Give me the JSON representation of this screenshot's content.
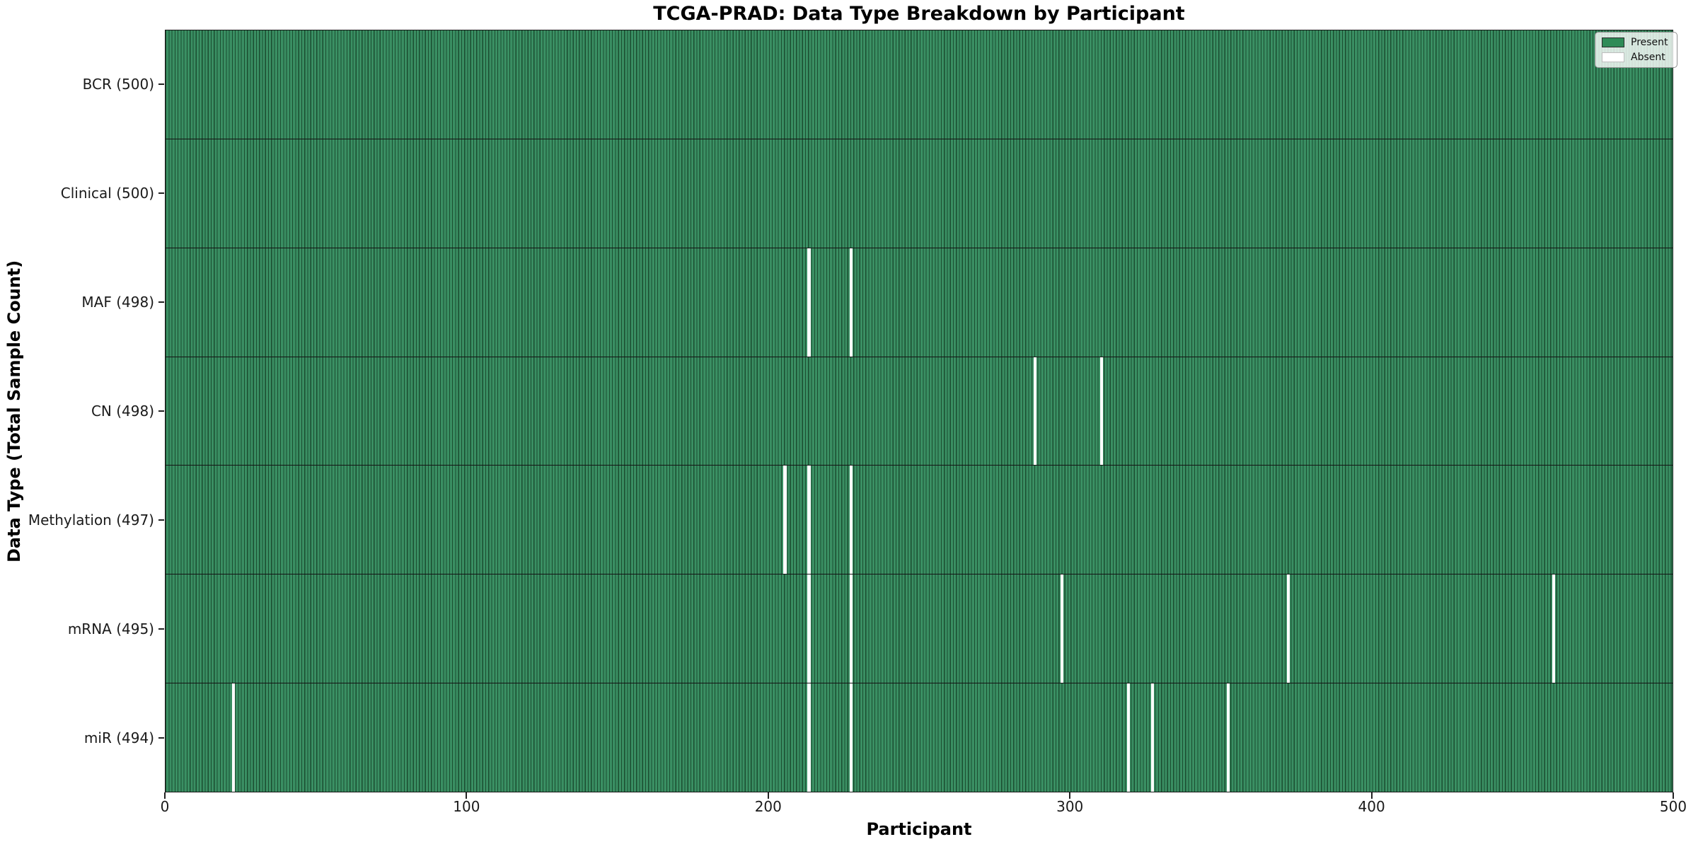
{
  "title": "TCGA-PRAD: Data Type Breakdown by Participant",
  "axes": {
    "xlabel": "Participant",
    "ylabel": "Data Type (Total Sample Count)"
  },
  "legend": {
    "present_label": "Present",
    "absent_label": "Absent"
  },
  "colors": {
    "present_fill": "#3a8f63",
    "present_edge": "#1b4d30",
    "present_legend": "#2e8b57",
    "absent": "#ffffff",
    "row_separator": "#141414"
  },
  "chart_data": {
    "type": "heatmap",
    "title": "TCGA-PRAD: Data Type Breakdown by Participant",
    "xlabel": "Participant",
    "ylabel": "Data Type (Total Sample Count)",
    "xlim": [
      0,
      500
    ],
    "xticks": [
      0,
      100,
      200,
      300,
      400,
      500
    ],
    "n_participants": 500,
    "legend": [
      "Present",
      "Absent"
    ],
    "legend_position": "upper right",
    "grid": false,
    "rows": [
      {
        "label": "BCR (500)",
        "data_type": "BCR",
        "total_samples": 500,
        "absent_participants": []
      },
      {
        "label": "Clinical (500)",
        "data_type": "Clinical",
        "total_samples": 500,
        "absent_participants": []
      },
      {
        "label": "MAF (498)",
        "data_type": "MAF",
        "total_samples": 498,
        "absent_participants": [
          213,
          227
        ]
      },
      {
        "label": "CN (498)",
        "data_type": "CN",
        "total_samples": 498,
        "absent_participants": [
          288,
          310
        ]
      },
      {
        "label": "Methylation (497)",
        "data_type": "Methylation",
        "total_samples": 497,
        "absent_participants": [
          205,
          213,
          227
        ]
      },
      {
        "label": "mRNA (495)",
        "data_type": "mRNA",
        "total_samples": 495,
        "absent_participants": [
          213,
          227,
          297,
          372,
          460
        ]
      },
      {
        "label": "miR (494)",
        "data_type": "miR",
        "total_samples": 494,
        "absent_participants": [
          22,
          213,
          227,
          319,
          327,
          352
        ]
      }
    ]
  }
}
